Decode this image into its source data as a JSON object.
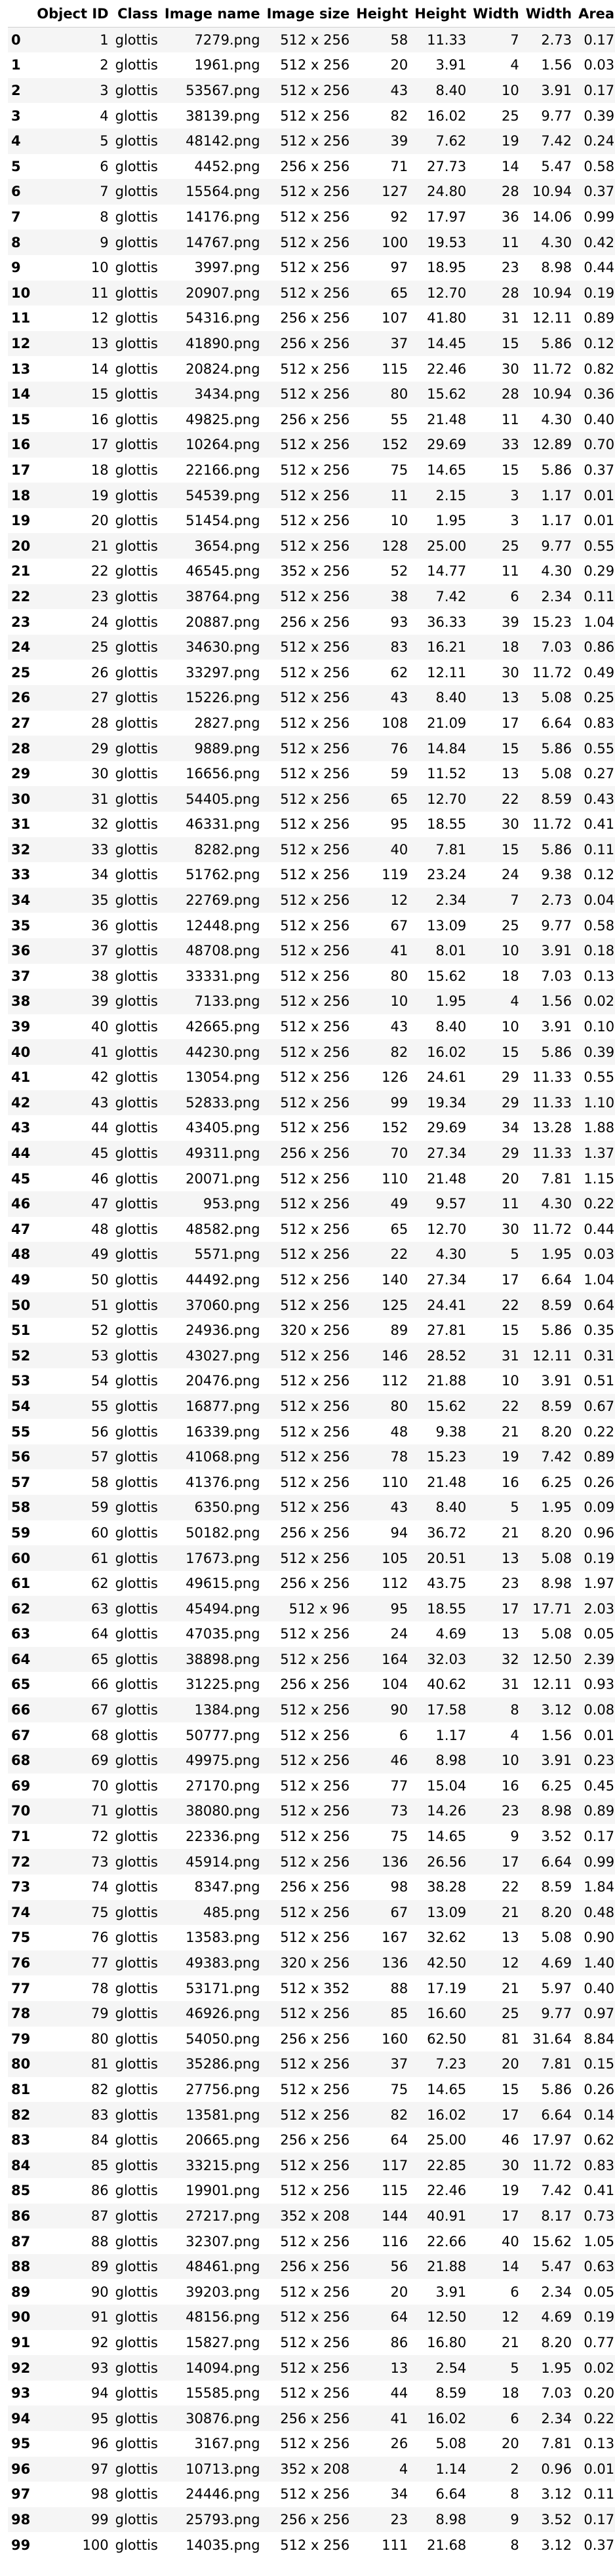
{
  "columns": [
    "",
    "Object ID",
    "Class",
    "Image name",
    "Image size",
    "Height",
    "Height",
    "Width",
    "Width",
    "Area"
  ],
  "rows": [
    [
      "0",
      "1",
      "glottis",
      "7279.png",
      "512 x 256",
      "58",
      "11.33",
      "7",
      "2.73",
      "0.17"
    ],
    [
      "1",
      "2",
      "glottis",
      "1961.png",
      "512 x 256",
      "20",
      "3.91",
      "4",
      "1.56",
      "0.03"
    ],
    [
      "2",
      "3",
      "glottis",
      "53567.png",
      "512 x 256",
      "43",
      "8.40",
      "10",
      "3.91",
      "0.17"
    ],
    [
      "3",
      "4",
      "glottis",
      "38139.png",
      "512 x 256",
      "82",
      "16.02",
      "25",
      "9.77",
      "0.39"
    ],
    [
      "4",
      "5",
      "glottis",
      "48142.png",
      "512 x 256",
      "39",
      "7.62",
      "19",
      "7.42",
      "0.24"
    ],
    [
      "5",
      "6",
      "glottis",
      "4452.png",
      "256 x 256",
      "71",
      "27.73",
      "14",
      "5.47",
      "0.58"
    ],
    [
      "6",
      "7",
      "glottis",
      "15564.png",
      "512 x 256",
      "127",
      "24.80",
      "28",
      "10.94",
      "0.37"
    ],
    [
      "7",
      "8",
      "glottis",
      "14176.png",
      "512 x 256",
      "92",
      "17.97",
      "36",
      "14.06",
      "0.99"
    ],
    [
      "8",
      "9",
      "glottis",
      "14767.png",
      "512 x 256",
      "100",
      "19.53",
      "11",
      "4.30",
      "0.42"
    ],
    [
      "9",
      "10",
      "glottis",
      "3997.png",
      "512 x 256",
      "97",
      "18.95",
      "23",
      "8.98",
      "0.44"
    ],
    [
      "10",
      "11",
      "glottis",
      "20907.png",
      "512 x 256",
      "65",
      "12.70",
      "28",
      "10.94",
      "0.19"
    ],
    [
      "11",
      "12",
      "glottis",
      "54316.png",
      "256 x 256",
      "107",
      "41.80",
      "31",
      "12.11",
      "0.89"
    ],
    [
      "12",
      "13",
      "glottis",
      "41890.png",
      "256 x 256",
      "37",
      "14.45",
      "15",
      "5.86",
      "0.12"
    ],
    [
      "13",
      "14",
      "glottis",
      "20824.png",
      "512 x 256",
      "115",
      "22.46",
      "30",
      "11.72",
      "0.82"
    ],
    [
      "14",
      "15",
      "glottis",
      "3434.png",
      "512 x 256",
      "80",
      "15.62",
      "28",
      "10.94",
      "0.36"
    ],
    [
      "15",
      "16",
      "glottis",
      "49825.png",
      "256 x 256",
      "55",
      "21.48",
      "11",
      "4.30",
      "0.40"
    ],
    [
      "16",
      "17",
      "glottis",
      "10264.png",
      "512 x 256",
      "152",
      "29.69",
      "33",
      "12.89",
      "0.70"
    ],
    [
      "17",
      "18",
      "glottis",
      "22166.png",
      "512 x 256",
      "75",
      "14.65",
      "15",
      "5.86",
      "0.37"
    ],
    [
      "18",
      "19",
      "glottis",
      "54539.png",
      "512 x 256",
      "11",
      "2.15",
      "3",
      "1.17",
      "0.01"
    ],
    [
      "19",
      "20",
      "glottis",
      "51454.png",
      "512 x 256",
      "10",
      "1.95",
      "3",
      "1.17",
      "0.01"
    ],
    [
      "20",
      "21",
      "glottis",
      "3654.png",
      "512 x 256",
      "128",
      "25.00",
      "25",
      "9.77",
      "0.55"
    ],
    [
      "21",
      "22",
      "glottis",
      "46545.png",
      "352 x 256",
      "52",
      "14.77",
      "11",
      "4.30",
      "0.29"
    ],
    [
      "22",
      "23",
      "glottis",
      "38764.png",
      "512 x 256",
      "38",
      "7.42",
      "6",
      "2.34",
      "0.11"
    ],
    [
      "23",
      "24",
      "glottis",
      "20887.png",
      "256 x 256",
      "93",
      "36.33",
      "39",
      "15.23",
      "1.04"
    ],
    [
      "24",
      "25",
      "glottis",
      "34630.png",
      "512 x 256",
      "83",
      "16.21",
      "18",
      "7.03",
      "0.86"
    ],
    [
      "25",
      "26",
      "glottis",
      "33297.png",
      "512 x 256",
      "62",
      "12.11",
      "30",
      "11.72",
      "0.49"
    ],
    [
      "26",
      "27",
      "glottis",
      "15226.png",
      "512 x 256",
      "43",
      "8.40",
      "13",
      "5.08",
      "0.25"
    ],
    [
      "27",
      "28",
      "glottis",
      "2827.png",
      "512 x 256",
      "108",
      "21.09",
      "17",
      "6.64",
      "0.83"
    ],
    [
      "28",
      "29",
      "glottis",
      "9889.png",
      "512 x 256",
      "76",
      "14.84",
      "15",
      "5.86",
      "0.55"
    ],
    [
      "29",
      "30",
      "glottis",
      "16656.png",
      "512 x 256",
      "59",
      "11.52",
      "13",
      "5.08",
      "0.27"
    ],
    [
      "30",
      "31",
      "glottis",
      "54405.png",
      "512 x 256",
      "65",
      "12.70",
      "22",
      "8.59",
      "0.43"
    ],
    [
      "31",
      "32",
      "glottis",
      "46331.png",
      "512 x 256",
      "95",
      "18.55",
      "30",
      "11.72",
      "0.41"
    ],
    [
      "32",
      "33",
      "glottis",
      "8282.png",
      "512 x 256",
      "40",
      "7.81",
      "15",
      "5.86",
      "0.11"
    ],
    [
      "33",
      "34",
      "glottis",
      "51762.png",
      "512 x 256",
      "119",
      "23.24",
      "24",
      "9.38",
      "0.12"
    ],
    [
      "34",
      "35",
      "glottis",
      "22769.png",
      "512 x 256",
      "12",
      "2.34",
      "7",
      "2.73",
      "0.04"
    ],
    [
      "35",
      "36",
      "glottis",
      "12448.png",
      "512 x 256",
      "67",
      "13.09",
      "25",
      "9.77",
      "0.58"
    ],
    [
      "36",
      "37",
      "glottis",
      "48708.png",
      "512 x 256",
      "41",
      "8.01",
      "10",
      "3.91",
      "0.18"
    ],
    [
      "37",
      "38",
      "glottis",
      "33331.png",
      "512 x 256",
      "80",
      "15.62",
      "18",
      "7.03",
      "0.13"
    ],
    [
      "38",
      "39",
      "glottis",
      "7133.png",
      "512 x 256",
      "10",
      "1.95",
      "4",
      "1.56",
      "0.02"
    ],
    [
      "39",
      "40",
      "glottis",
      "42665.png",
      "512 x 256",
      "43",
      "8.40",
      "10",
      "3.91",
      "0.10"
    ],
    [
      "40",
      "41",
      "glottis",
      "44230.png",
      "512 x 256",
      "82",
      "16.02",
      "15",
      "5.86",
      "0.39"
    ],
    [
      "41",
      "42",
      "glottis",
      "13054.png",
      "512 x 256",
      "126",
      "24.61",
      "29",
      "11.33",
      "0.55"
    ],
    [
      "42",
      "43",
      "glottis",
      "52833.png",
      "512 x 256",
      "99",
      "19.34",
      "29",
      "11.33",
      "1.10"
    ],
    [
      "43",
      "44",
      "glottis",
      "43405.png",
      "512 x 256",
      "152",
      "29.69",
      "34",
      "13.28",
      "1.88"
    ],
    [
      "44",
      "45",
      "glottis",
      "49311.png",
      "256 x 256",
      "70",
      "27.34",
      "29",
      "11.33",
      "1.37"
    ],
    [
      "45",
      "46",
      "glottis",
      "20071.png",
      "512 x 256",
      "110",
      "21.48",
      "20",
      "7.81",
      "1.15"
    ],
    [
      "46",
      "47",
      "glottis",
      "953.png",
      "512 x 256",
      "49",
      "9.57",
      "11",
      "4.30",
      "0.22"
    ],
    [
      "47",
      "48",
      "glottis",
      "48582.png",
      "512 x 256",
      "65",
      "12.70",
      "30",
      "11.72",
      "0.44"
    ],
    [
      "48",
      "49",
      "glottis",
      "5571.png",
      "512 x 256",
      "22",
      "4.30",
      "5",
      "1.95",
      "0.03"
    ],
    [
      "49",
      "50",
      "glottis",
      "44492.png",
      "512 x 256",
      "140",
      "27.34",
      "17",
      "6.64",
      "1.04"
    ],
    [
      "50",
      "51",
      "glottis",
      "37060.png",
      "512 x 256",
      "125",
      "24.41",
      "22",
      "8.59",
      "0.64"
    ],
    [
      "51",
      "52",
      "glottis",
      "24936.png",
      "320 x 256",
      "89",
      "27.81",
      "15",
      "5.86",
      "0.35"
    ],
    [
      "52",
      "53",
      "glottis",
      "43027.png",
      "512 x 256",
      "146",
      "28.52",
      "31",
      "12.11",
      "0.31"
    ],
    [
      "53",
      "54",
      "glottis",
      "20476.png",
      "512 x 256",
      "112",
      "21.88",
      "10",
      "3.91",
      "0.51"
    ],
    [
      "54",
      "55",
      "glottis",
      "16877.png",
      "512 x 256",
      "80",
      "15.62",
      "22",
      "8.59",
      "0.67"
    ],
    [
      "55",
      "56",
      "glottis",
      "16339.png",
      "512 x 256",
      "48",
      "9.38",
      "21",
      "8.20",
      "0.22"
    ],
    [
      "56",
      "57",
      "glottis",
      "41068.png",
      "512 x 256",
      "78",
      "15.23",
      "19",
      "7.42",
      "0.89"
    ],
    [
      "57",
      "58",
      "glottis",
      "41376.png",
      "512 x 256",
      "110",
      "21.48",
      "16",
      "6.25",
      "0.26"
    ],
    [
      "58",
      "59",
      "glottis",
      "6350.png",
      "512 x 256",
      "43",
      "8.40",
      "5",
      "1.95",
      "0.09"
    ],
    [
      "59",
      "60",
      "glottis",
      "50182.png",
      "256 x 256",
      "94",
      "36.72",
      "21",
      "8.20",
      "0.96"
    ],
    [
      "60",
      "61",
      "glottis",
      "17673.png",
      "512 x 256",
      "105",
      "20.51",
      "13",
      "5.08",
      "0.19"
    ],
    [
      "61",
      "62",
      "glottis",
      "49615.png",
      "256 x 256",
      "112",
      "43.75",
      "23",
      "8.98",
      "1.97"
    ],
    [
      "62",
      "63",
      "glottis",
      "45494.png",
      "512 x 96",
      "95",
      "18.55",
      "17",
      "17.71",
      "2.03"
    ],
    [
      "63",
      "64",
      "glottis",
      "47035.png",
      "512 x 256",
      "24",
      "4.69",
      "13",
      "5.08",
      "0.05"
    ],
    [
      "64",
      "65",
      "glottis",
      "38898.png",
      "512 x 256",
      "164",
      "32.03",
      "32",
      "12.50",
      "2.39"
    ],
    [
      "65",
      "66",
      "glottis",
      "31225.png",
      "256 x 256",
      "104",
      "40.62",
      "31",
      "12.11",
      "0.93"
    ],
    [
      "66",
      "67",
      "glottis",
      "1384.png",
      "512 x 256",
      "90",
      "17.58",
      "8",
      "3.12",
      "0.08"
    ],
    [
      "67",
      "68",
      "glottis",
      "50777.png",
      "512 x 256",
      "6",
      "1.17",
      "4",
      "1.56",
      "0.01"
    ],
    [
      "68",
      "69",
      "glottis",
      "49975.png",
      "512 x 256",
      "46",
      "8.98",
      "10",
      "3.91",
      "0.23"
    ],
    [
      "69",
      "70",
      "glottis",
      "27170.png",
      "512 x 256",
      "77",
      "15.04",
      "16",
      "6.25",
      "0.45"
    ],
    [
      "70",
      "71",
      "glottis",
      "38080.png",
      "512 x 256",
      "73",
      "14.26",
      "23",
      "8.98",
      "0.89"
    ],
    [
      "71",
      "72",
      "glottis",
      "22336.png",
      "512 x 256",
      "75",
      "14.65",
      "9",
      "3.52",
      "0.17"
    ],
    [
      "72",
      "73",
      "glottis",
      "45914.png",
      "512 x 256",
      "136",
      "26.56",
      "17",
      "6.64",
      "0.99"
    ],
    [
      "73",
      "74",
      "glottis",
      "8347.png",
      "256 x 256",
      "98",
      "38.28",
      "22",
      "8.59",
      "1.84"
    ],
    [
      "74",
      "75",
      "glottis",
      "485.png",
      "512 x 256",
      "67",
      "13.09",
      "21",
      "8.20",
      "0.48"
    ],
    [
      "75",
      "76",
      "glottis",
      "13583.png",
      "512 x 256",
      "167",
      "32.62",
      "13",
      "5.08",
      "0.90"
    ],
    [
      "76",
      "77",
      "glottis",
      "49383.png",
      "320 x 256",
      "136",
      "42.50",
      "12",
      "4.69",
      "1.40"
    ],
    [
      "77",
      "78",
      "glottis",
      "53171.png",
      "512 x 352",
      "88",
      "17.19",
      "21",
      "5.97",
      "0.40"
    ],
    [
      "78",
      "79",
      "glottis",
      "46926.png",
      "512 x 256",
      "85",
      "16.60",
      "25",
      "9.77",
      "0.97"
    ],
    [
      "79",
      "80",
      "glottis",
      "54050.png",
      "256 x 256",
      "160",
      "62.50",
      "81",
      "31.64",
      "8.84"
    ],
    [
      "80",
      "81",
      "glottis",
      "35286.png",
      "512 x 256",
      "37",
      "7.23",
      "20",
      "7.81",
      "0.15"
    ],
    [
      "81",
      "82",
      "glottis",
      "27756.png",
      "512 x 256",
      "75",
      "14.65",
      "15",
      "5.86",
      "0.26"
    ],
    [
      "82",
      "83",
      "glottis",
      "13581.png",
      "512 x 256",
      "82",
      "16.02",
      "17",
      "6.64",
      "0.14"
    ],
    [
      "83",
      "84",
      "glottis",
      "20665.png",
      "256 x 256",
      "64",
      "25.00",
      "46",
      "17.97",
      "0.62"
    ],
    [
      "84",
      "85",
      "glottis",
      "33215.png",
      "512 x 256",
      "117",
      "22.85",
      "30",
      "11.72",
      "0.83"
    ],
    [
      "85",
      "86",
      "glottis",
      "19901.png",
      "512 x 256",
      "115",
      "22.46",
      "19",
      "7.42",
      "0.41"
    ],
    [
      "86",
      "87",
      "glottis",
      "27217.png",
      "352 x 208",
      "144",
      "40.91",
      "17",
      "8.17",
      "0.73"
    ],
    [
      "87",
      "88",
      "glottis",
      "32307.png",
      "512 x 256",
      "116",
      "22.66",
      "40",
      "15.62",
      "1.05"
    ],
    [
      "88",
      "89",
      "glottis",
      "48461.png",
      "256 x 256",
      "56",
      "21.88",
      "14",
      "5.47",
      "0.63"
    ],
    [
      "89",
      "90",
      "glottis",
      "39203.png",
      "512 x 256",
      "20",
      "3.91",
      "6",
      "2.34",
      "0.05"
    ],
    [
      "90",
      "91",
      "glottis",
      "48156.png",
      "512 x 256",
      "64",
      "12.50",
      "12",
      "4.69",
      "0.19"
    ],
    [
      "91",
      "92",
      "glottis",
      "15827.png",
      "512 x 256",
      "86",
      "16.80",
      "21",
      "8.20",
      "0.77"
    ],
    [
      "92",
      "93",
      "glottis",
      "14094.png",
      "512 x 256",
      "13",
      "2.54",
      "5",
      "1.95",
      "0.02"
    ],
    [
      "93",
      "94",
      "glottis",
      "15585.png",
      "512 x 256",
      "44",
      "8.59",
      "18",
      "7.03",
      "0.20"
    ],
    [
      "94",
      "95",
      "glottis",
      "30876.png",
      "256 x 256",
      "41",
      "16.02",
      "6",
      "2.34",
      "0.22"
    ],
    [
      "95",
      "96",
      "glottis",
      "3167.png",
      "512 x 256",
      "26",
      "5.08",
      "20",
      "7.81",
      "0.13"
    ],
    [
      "96",
      "97",
      "glottis",
      "10713.png",
      "352 x 208",
      "4",
      "1.14",
      "2",
      "0.96",
      "0.01"
    ],
    [
      "97",
      "98",
      "glottis",
      "24446.png",
      "512 x 256",
      "34",
      "6.64",
      "8",
      "3.12",
      "0.11"
    ],
    [
      "98",
      "99",
      "glottis",
      "25793.png",
      "256 x 256",
      "23",
      "8.98",
      "9",
      "3.52",
      "0.17"
    ],
    [
      "99",
      "100",
      "glottis",
      "14035.png",
      "512 x 256",
      "111",
      "21.68",
      "8",
      "3.12",
      "0.37"
    ]
  ]
}
